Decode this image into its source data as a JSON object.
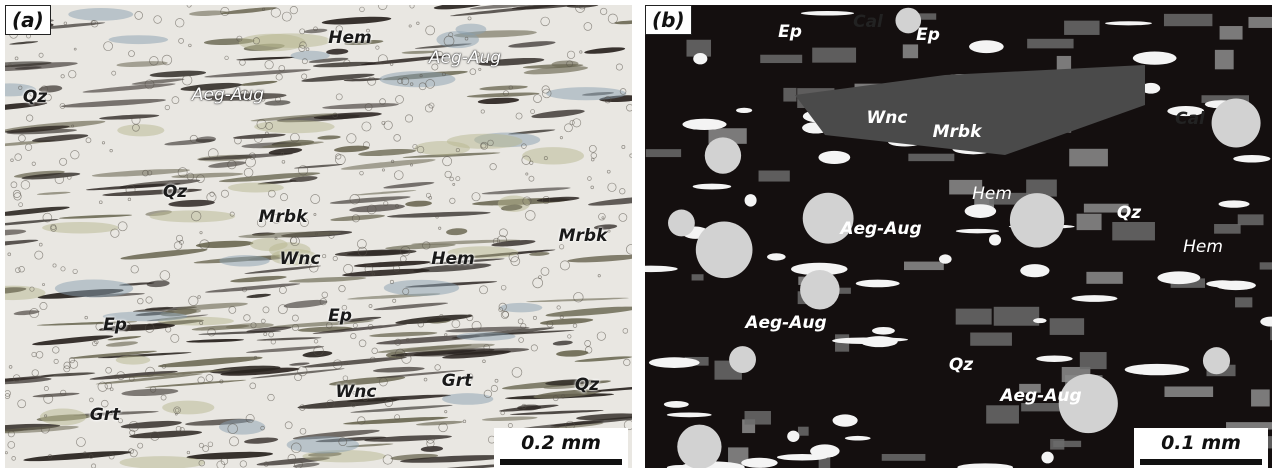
{
  "panels": [
    {
      "label": "(a)",
      "scale_bar": "0.2 mm",
      "annotations": [
        "Hem",
        "Aeg-Aug",
        "Qz",
        "Aeg-Aug",
        "Qz",
        "Mrbk",
        "Mrbk",
        "Wnc",
        "Hem",
        "Ep",
        "Ep",
        "Wnc",
        "Grt",
        "Qz",
        "Grt"
      ]
    },
    {
      "label": "(b)",
      "scale_bar": "0.1 mm",
      "annotations": [
        "Ep",
        "Cal",
        "Ep",
        "Wnc",
        "Mrbk",
        "Cal",
        "Hem",
        "Qz",
        "Aeg-Aug",
        "Hem",
        "Aeg-Aug",
        "Qz",
        "Aeg-Aug"
      ]
    }
  ]
}
